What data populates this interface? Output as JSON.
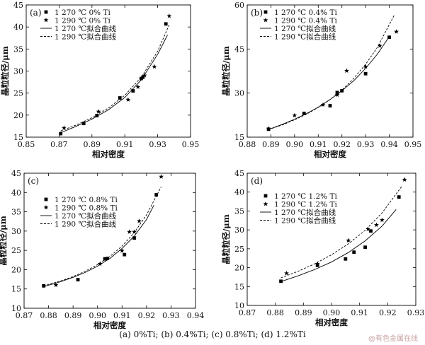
{
  "caption": "(a) 0%Ti; (b) 0.4%Ti; (c) 0.8%Ti; (d) 1.2%Ti",
  "watermark": "@有色金属在线",
  "chart_data": [
    {
      "type": "scatter",
      "panel": "(a)",
      "xlabel": "相对密度",
      "ylabel": "晶粒粒径/μm",
      "xlim": [
        0.85,
        0.95
      ],
      "ylim": [
        15,
        45
      ],
      "xticks": [
        "0.85",
        "0.87",
        "0.89",
        "0.91",
        "0.93",
        "0.95"
      ],
      "yticks": [
        "15",
        "20",
        "25",
        "30",
        "35",
        "40",
        "45"
      ],
      "legend": [
        "1 270 ℃ 0% Ti",
        "1 290 ℃ 0% Ti",
        "1 270 ℃拟合曲线",
        "1 290 ℃拟合曲线"
      ],
      "series": [
        {
          "name": "1 270 ℃ 0% Ti",
          "marker": "square",
          "x": [
            0.871,
            0.885,
            0.893,
            0.907,
            0.915,
            0.92,
            0.921,
            0.935
          ],
          "y": [
            15.8,
            18.1,
            19.9,
            23.9,
            25.5,
            28.3,
            28.6,
            40.7
          ]
        },
        {
          "name": "1 290 ℃ 0% Ti",
          "marker": "star",
          "x": [
            0.873,
            0.894,
            0.912,
            0.918,
            0.922,
            0.928,
            0.937
          ],
          "y": [
            17.1,
            20.8,
            23.5,
            26.4,
            29.0,
            31.0,
            42.5
          ]
        },
        {
          "name": "1 270 ℃拟合曲线",
          "style": "solid",
          "x": [
            0.871,
            0.88,
            0.89,
            0.9,
            0.91,
            0.92,
            0.93,
            0.936
          ],
          "y": [
            16.0,
            17.4,
            19.1,
            21.2,
            24.0,
            28.0,
            33.8,
            38.2
          ]
        },
        {
          "name": "1 290 ℃拟合曲线",
          "style": "dashed",
          "x": [
            0.871,
            0.88,
            0.89,
            0.9,
            0.91,
            0.92,
            0.93,
            0.937
          ],
          "y": [
            16.4,
            17.7,
            19.4,
            21.6,
            24.5,
            28.6,
            34.5,
            40.5
          ]
        }
      ]
    },
    {
      "type": "scatter",
      "panel": "(b)",
      "xlabel": "相对密度",
      "ylabel": "晶粒粒径/μm",
      "xlim": [
        0.88,
        0.95
      ],
      "ylim": [
        15,
        60
      ],
      "xticks": [
        "0.88",
        "0.89",
        "0.90",
        "0.91",
        "0.92",
        "0.93",
        "0.94",
        "0.95"
      ],
      "yticks": [
        "15",
        "30",
        "45",
        "60"
      ],
      "legend": [
        "1 270 ℃ 0.4% Ti",
        "1 290 ℃ 0.4% Ti",
        "1 270 ℃拟合曲线",
        "1 290 ℃拟合曲线"
      ],
      "series": [
        {
          "name": "1 270 ℃ 0.4% Ti",
          "marker": "square",
          "x": [
            0.889,
            0.904,
            0.915,
            0.918,
            0.92,
            0.93,
            0.94
          ],
          "y": [
            17.7,
            23.1,
            25.7,
            30.2,
            30.8,
            36.6,
            49.0
          ]
        },
        {
          "name": "1 290 ℃ 0.4% Ti",
          "marker": "star",
          "x": [
            0.889,
            0.9,
            0.912,
            0.918,
            0.922,
            0.93,
            0.936,
            0.943
          ],
          "y": [
            17.9,
            22.4,
            26.0,
            29.4,
            37.6,
            39.0,
            46.1,
            50.9
          ]
        },
        {
          "name": "1 270 ℃拟合曲线",
          "style": "solid",
          "x": [
            0.889,
            0.895,
            0.9,
            0.905,
            0.91,
            0.915,
            0.92,
            0.925,
            0.93,
            0.935,
            0.94
          ],
          "y": [
            17.6,
            19.4,
            21.1,
            23.0,
            25.2,
            27.8,
            30.8,
            34.2,
            38.4,
            43.3,
            49.2
          ]
        },
        {
          "name": "1 290 ℃拟合曲线",
          "style": "dashed",
          "x": [
            0.889,
            0.895,
            0.9,
            0.905,
            0.91,
            0.915,
            0.92,
            0.925,
            0.93,
            0.935,
            0.942
          ],
          "y": [
            17.6,
            19.2,
            20.9,
            22.8,
            25.1,
            27.8,
            31.0,
            35.0,
            39.8,
            45.6,
            56.4
          ]
        }
      ]
    },
    {
      "type": "scatter",
      "panel": "(c)",
      "xlabel": "相对密度",
      "ylabel": "晶粒粒径/μm",
      "xlim": [
        0.87,
        0.94
      ],
      "ylim": [
        10,
        45
      ],
      "xticks": [
        "0.87",
        "0.88",
        "0.89",
        "0.90",
        "0.91",
        "0.92",
        "0.93",
        "0.94"
      ],
      "yticks": [
        "10",
        "15",
        "20",
        "25",
        "30",
        "35",
        "40",
        "45"
      ],
      "legend": [
        "1 270 ℃ 0.8% Ti",
        "1 290 ℃ 0.8% Ti",
        "1 270 ℃拟合曲线",
        "1 290 ℃拟合曲线"
      ],
      "series": [
        {
          "name": "1 270 ℃ 0.8% Ti",
          "marker": "square",
          "x": [
            0.878,
            0.892,
            0.903,
            0.904,
            0.911,
            0.915,
            0.924
          ],
          "y": [
            15.8,
            17.4,
            22.8,
            22.9,
            23.9,
            28.2,
            39.4
          ]
        },
        {
          "name": "1 290 ℃ 0.8% Ti",
          "marker": "star",
          "x": [
            0.883,
            0.901,
            0.91,
            0.913,
            0.915,
            0.917,
            0.926
          ],
          "y": [
            16.0,
            21.5,
            24.9,
            29.8,
            29.8,
            32.6,
            44.1
          ]
        },
        {
          "name": "1 270 ℃拟合曲线",
          "style": "solid",
          "x": [
            0.878,
            0.885,
            0.89,
            0.895,
            0.9,
            0.905,
            0.91,
            0.915,
            0.92,
            0.923
          ],
          "y": [
            15.6,
            16.9,
            18.0,
            19.3,
            20.9,
            22.9,
            25.5,
            28.7,
            33.0,
            36.7
          ]
        },
        {
          "name": "1 290 ℃拟合曲线",
          "style": "dashed",
          "x": [
            0.878,
            0.885,
            0.89,
            0.895,
            0.9,
            0.905,
            0.91,
            0.915,
            0.92,
            0.926
          ],
          "y": [
            15.8,
            17.1,
            18.2,
            19.6,
            21.3,
            23.4,
            26.1,
            29.6,
            34.2,
            41.5
          ]
        }
      ]
    },
    {
      "type": "scatter",
      "panel": "(d)",
      "xlabel": "相对密度",
      "ylabel": "晶粒粒径/μm",
      "xlim": [
        0.87,
        0.93
      ],
      "ylim": [
        10,
        45
      ],
      "xticks": [
        "0.87",
        "0.88",
        "0.89",
        "0.90",
        "0.91",
        "0.92",
        "0.93"
      ],
      "yticks": [
        "10",
        "15",
        "20",
        "25",
        "30",
        "35",
        "40",
        "45"
      ],
      "legend": [
        "1 270 ℃ 1.2% Ti",
        "1 290 ℃ 1.2% Ti",
        "1 270 ℃拟合曲线",
        "1 290 ℃拟合曲线"
      ],
      "series": [
        {
          "name": "1 270 ℃ 1.2% Ti",
          "marker": "square",
          "x": [
            0.882,
            0.895,
            0.905,
            0.908,
            0.912,
            0.914,
            0.924
          ],
          "y": [
            16.4,
            20.6,
            22.3,
            24.1,
            25.4,
            29.7,
            38.7
          ]
        },
        {
          "name": "1 290 ℃ 1.2% Ti",
          "marker": "star",
          "x": [
            0.884,
            0.895,
            0.906,
            0.913,
            0.916,
            0.918,
            0.926
          ],
          "y": [
            18.5,
            21.0,
            27.2,
            30.2,
            31.3,
            32.6,
            43.3
          ]
        },
        {
          "name": "1 270 ℃拟合曲线",
          "style": "solid",
          "x": [
            0.882,
            0.888,
            0.894,
            0.9,
            0.906,
            0.912,
            0.918,
            0.923
          ],
          "y": [
            16.3,
            17.8,
            19.5,
            21.5,
            24.0,
            27.1,
            31.0,
            35.4
          ]
        },
        {
          "name": "1 290 ℃拟合曲线",
          "style": "dashed",
          "x": [
            0.882,
            0.888,
            0.894,
            0.9,
            0.906,
            0.912,
            0.918,
            0.925
          ],
          "y": [
            17.3,
            19.0,
            21.0,
            23.4,
            26.3,
            29.9,
            34.5,
            41.5
          ]
        }
      ]
    }
  ]
}
